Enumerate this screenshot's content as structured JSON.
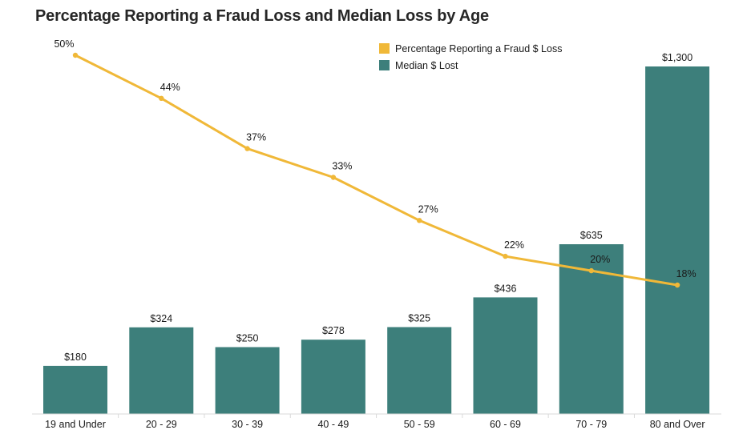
{
  "chart_data": {
    "type": "bar",
    "title": "Percentage Reporting a Fraud Loss and Median Loss by Age",
    "categories": [
      "19 and Under",
      "20 - 29",
      "30 - 39",
      "40 - 49",
      "50 - 59",
      "60 - 69",
      "70 - 79",
      "80 and Over"
    ],
    "series": [
      {
        "name": "Median $ Lost",
        "type": "bar",
        "values": [
          180,
          324,
          250,
          278,
          325,
          436,
          635,
          1300
        ],
        "labels": [
          "$180",
          "$324",
          "$250",
          "$278",
          "$325",
          "$436",
          "$635",
          "$1,300"
        ],
        "color": "#3d7f7b"
      },
      {
        "name": "Percentage Reporting a Fraud $ Loss",
        "type": "line",
        "values": [
          50,
          44,
          37,
          33,
          27,
          22,
          20,
          18
        ],
        "labels": [
          "50%",
          "44%",
          "37%",
          "33%",
          "27%",
          "22%",
          "20%",
          "18%"
        ],
        "color": "#f0b838"
      }
    ],
    "legend": "top-right",
    "grid": false
  }
}
